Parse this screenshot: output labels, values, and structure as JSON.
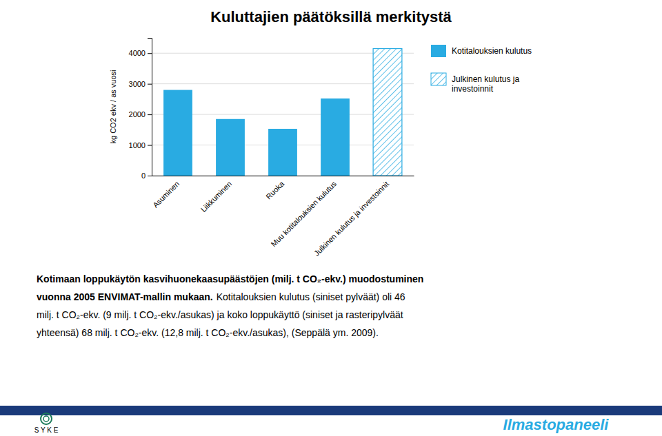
{
  "chart_data": {
    "type": "bar",
    "title": "Kuluttajien päätöksillä merkitystä",
    "categories": [
      "Asuminen",
      "Liikkuminen",
      "Ruoka",
      "Muu kotitalouksien kulutus",
      "Julkinen kulutus ja investoinnit"
    ],
    "series": [
      {
        "name": "Kotitalouksien kulutus",
        "color": "#29ABE2",
        "values": [
          2800,
          1850,
          1530,
          2520,
          null
        ]
      },
      {
        "name": "Julkinen kulutus ja\ninvestoinnit",
        "color": "#29ABE2",
        "values": [
          null,
          null,
          null,
          null,
          4150
        ]
      }
    ],
    "ylabel": "kg CO2 ekv / as vuosi",
    "ylim": [
      0,
      4500
    ],
    "yticks": [
      0,
      1000,
      2000,
      3000,
      4000
    ],
    "grid": true,
    "legend": "right",
    "annotations": [
      {
        "text": "Kotimaan loppukäytön kasvihuonekaasupäästöjen (milj. t CO₂-ekv.) muodostuminen"
      },
      {
        "text": "vuonna 2005 ENVIMAT-mallin mukaan."
      },
      {
        "text": "Kotitalouksien kulutus (siniset pylväät) oli 46"
      },
      {
        "text": "milj. t CO₂-ekv. (9 milj. t CO₂-ekv./asukas) ja koko loppukäyttö (siniset ja rasteripylväät"
      },
      {
        "text": "yhteensä) 68 milj. t CO₂-ekv. (12,8 milj. t CO₂-ekv./asukas), (Seppälä ym. 2009)."
      },
      {
        "text": "S Y K E"
      },
      {
        "text": "Ilmastopaneeli",
        "color": "#29ABE2"
      }
    ]
  }
}
